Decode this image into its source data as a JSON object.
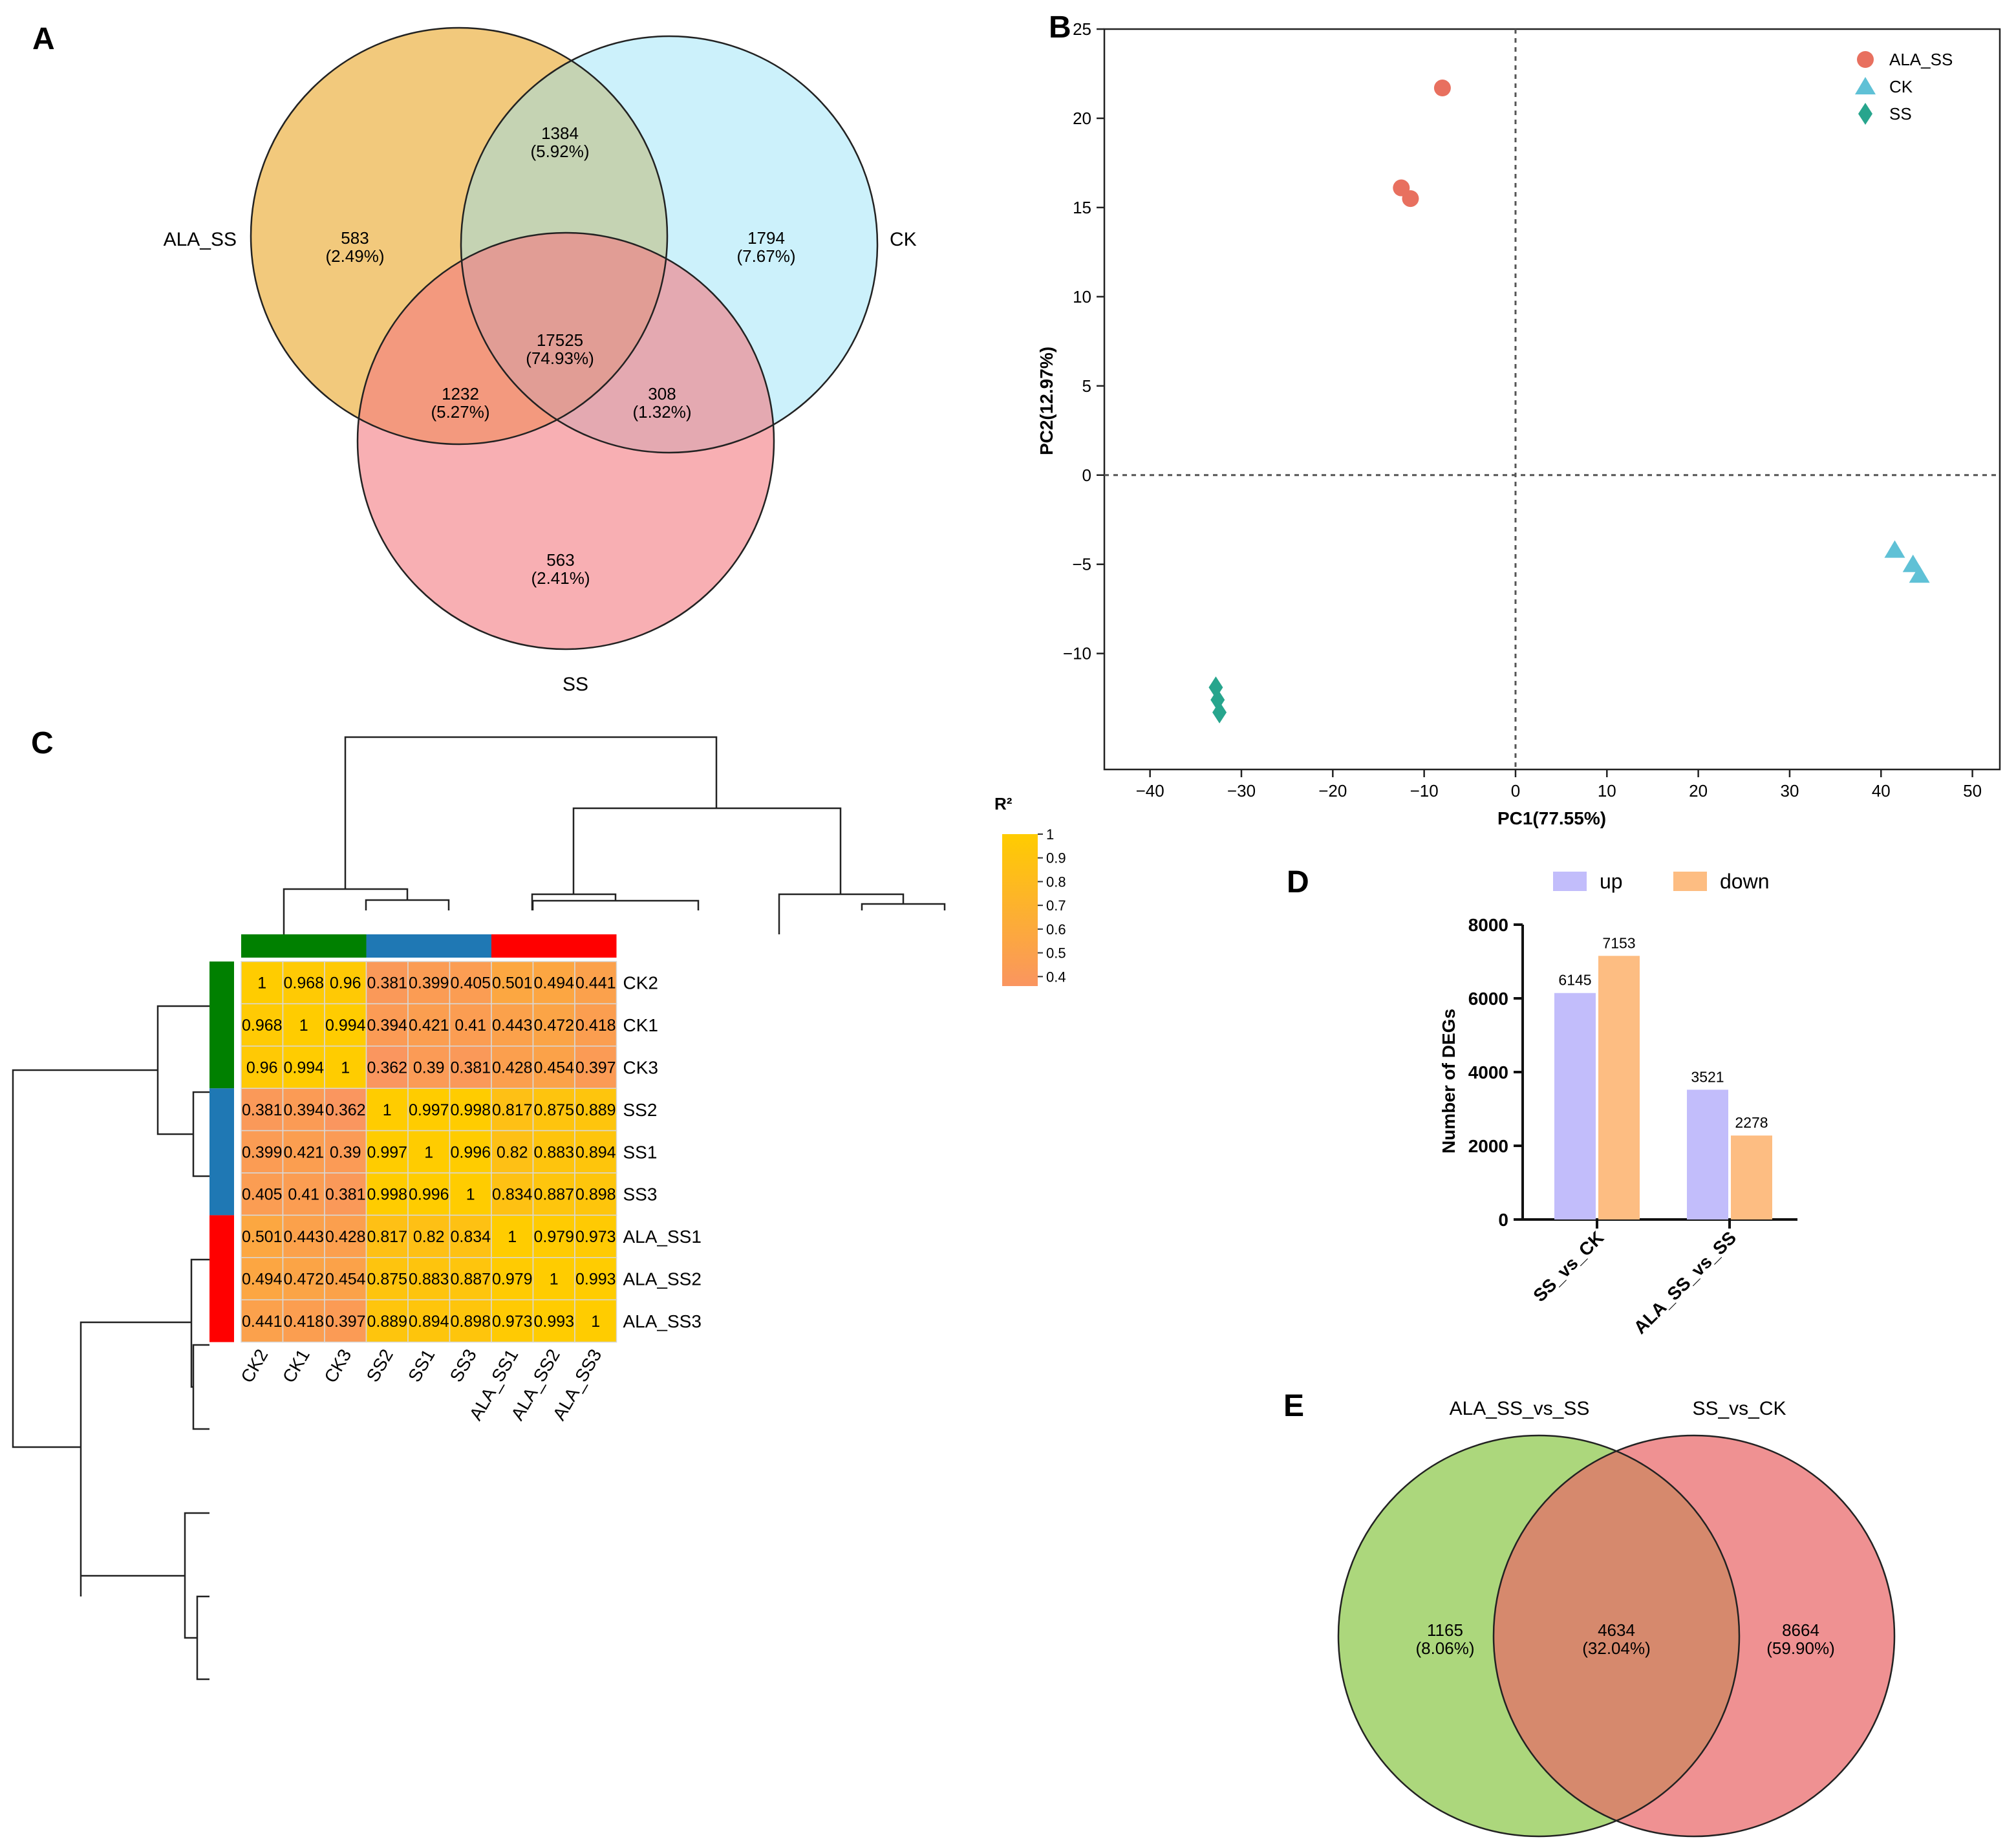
{
  "panels": {
    "a": "A",
    "b": "B",
    "c": "C",
    "d": "D",
    "e": "E"
  },
  "chart_data": [
    {
      "panel": "A",
      "type": "venn",
      "sets": [
        "ALA_SS",
        "CK",
        "SS"
      ],
      "colors": {
        "ALA_SS": "#f2c97c",
        "CK": "#8fe0f7",
        "SS": "#f47a80"
      },
      "regions": [
        {
          "id": "ala_only",
          "sets": [
            "ALA_SS"
          ],
          "count": "583",
          "pct": "(2.49%)"
        },
        {
          "id": "ck_only",
          "sets": [
            "CK"
          ],
          "count": "1794",
          "pct": "(7.67%)"
        },
        {
          "id": "ss_only",
          "sets": [
            "SS"
          ],
          "count": "563",
          "pct": "(2.41%)"
        },
        {
          "id": "ala_ck",
          "sets": [
            "ALA_SS",
            "CK"
          ],
          "count": "1384",
          "pct": "(5.92%)"
        },
        {
          "id": "ala_ss",
          "sets": [
            "ALA_SS",
            "SS"
          ],
          "count": "1232",
          "pct": "(5.27%)"
        },
        {
          "id": "ck_ss",
          "sets": [
            "CK",
            "SS"
          ],
          "count": "308",
          "pct": "(1.32%)"
        },
        {
          "id": "all",
          "sets": [
            "ALA_SS",
            "CK",
            "SS"
          ],
          "count": "17525",
          "pct": "(74.93%)"
        }
      ]
    },
    {
      "panel": "B",
      "type": "scatter",
      "xlabel": "PC1(77.55%)",
      "ylabel": "PC2(12.97%)",
      "xlim": [
        -45,
        53
      ],
      "ylim": [
        -16.5,
        25
      ],
      "xticks": [
        -40,
        -30,
        -20,
        -10,
        0,
        10,
        20,
        30,
        40,
        50
      ],
      "yticks": [
        -10,
        -5,
        0,
        5,
        10,
        15,
        20,
        25
      ],
      "reference_lines": {
        "x": 0,
        "y": 0
      },
      "legend": "top-right",
      "series": [
        {
          "name": "ALA_SS",
          "marker": "circle",
          "color": "#e8705f",
          "points": [
            [
              -8,
              21.7
            ],
            [
              -12.5,
              16.1
            ],
            [
              -11.5,
              15.5
            ]
          ]
        },
        {
          "name": "CK",
          "marker": "triangle",
          "color": "#5fc1d6",
          "points": [
            [
              41.5,
              -4.2
            ],
            [
              43.5,
              -5.0
            ],
            [
              44.2,
              -5.6
            ]
          ]
        },
        {
          "name": "SS",
          "marker": "diamond",
          "color": "#27a58d",
          "points": [
            [
              -32.8,
              -11.9
            ],
            [
              -32.6,
              -12.6
            ],
            [
              -32.4,
              -13.3
            ]
          ]
        }
      ]
    },
    {
      "panel": "C",
      "type": "heatmap",
      "legend_title": "R²",
      "legend_ticks": [
        "1",
        "0.9",
        "0.8",
        "0.7",
        "0.6",
        "0.5",
        "0.4"
      ],
      "legend_values": [
        1,
        0.9,
        0.8,
        0.7,
        0.6,
        0.5,
        0.4
      ],
      "color_scale": {
        "min": 0.36,
        "max": 1,
        "low": "#fa9560",
        "high": "#ffcc00"
      },
      "columns": [
        "CK2",
        "CK1",
        "CK3",
        "SS2",
        "SS1",
        "SS3",
        "ALA_SS1",
        "ALA_SS2",
        "ALA_SS3"
      ],
      "rows": [
        "CK2",
        "CK1",
        "CK3",
        "SS2",
        "SS1",
        "SS3",
        "ALA_SS1",
        "ALA_SS2",
        "ALA_SS3"
      ],
      "group_colors": {
        "CK": "#008000",
        "SS": "#1f78b4",
        "ALA_SS": "#ff0000"
      },
      "groups": [
        "CK",
        "CK",
        "CK",
        "SS",
        "SS",
        "SS",
        "ALA_SS",
        "ALA_SS",
        "ALA_SS"
      ],
      "values": [
        [
          "1",
          "0.968",
          "0.96",
          "0.381",
          "0.399",
          "0.405",
          "0.501",
          "0.494",
          "0.441"
        ],
        [
          "0.968",
          "1",
          "0.994",
          "0.394",
          "0.421",
          "0.41",
          "0.443",
          "0.472",
          "0.418"
        ],
        [
          "0.96",
          "0.994",
          "1",
          "0.362",
          "0.39",
          "0.381",
          "0.428",
          "0.454",
          "0.397"
        ],
        [
          "0.381",
          "0.394",
          "0.362",
          "1",
          "0.997",
          "0.998",
          "0.817",
          "0.875",
          "0.889"
        ],
        [
          "0.399",
          "0.421",
          "0.39",
          "0.997",
          "1",
          "0.996",
          "0.82",
          "0.883",
          "0.894"
        ],
        [
          "0.405",
          "0.41",
          "0.381",
          "0.998",
          "0.996",
          "1",
          "0.834",
          "0.887",
          "0.898"
        ],
        [
          "0.501",
          "0.443",
          "0.428",
          "0.817",
          "0.82",
          "0.834",
          "1",
          "0.979",
          "0.973"
        ],
        [
          "0.494",
          "0.472",
          "0.454",
          "0.875",
          "0.883",
          "0.887",
          "0.979",
          "1",
          "0.993"
        ],
        [
          "0.441",
          "0.418",
          "0.397",
          "0.889",
          "0.894",
          "0.898",
          "0.973",
          "0.993",
          "1"
        ]
      ]
    },
    {
      "panel": "D",
      "type": "bar",
      "ylabel": "Number of DEGs",
      "ylim": [
        0,
        8000
      ],
      "yticks": [
        0,
        2000,
        4000,
        6000,
        8000
      ],
      "categories": [
        "SS_vs_CK",
        "ALA_SS_vs_SS"
      ],
      "legend": "top",
      "series": [
        {
          "name": "up",
          "color": "#c2bdfb",
          "values": [
            6145,
            3521
          ]
        },
        {
          "name": "down",
          "color": "#fdbd82",
          "values": [
            7153,
            2278
          ]
        }
      ]
    },
    {
      "panel": "E",
      "type": "venn",
      "sets": [
        "ALA_SS_vs_SS",
        "SS_vs_CK"
      ],
      "colors": {
        "ALA_SS_vs_SS": "#acd77c",
        "SS_vs_CK": "#ef9192"
      },
      "regions": [
        {
          "id": "left_only",
          "sets": [
            "ALA_SS_vs_SS"
          ],
          "count": "1165",
          "pct": "(8.06%)"
        },
        {
          "id": "both",
          "sets": [
            "ALA_SS_vs_SS",
            "SS_vs_CK"
          ],
          "count": "4634",
          "pct": "(32.04%)"
        },
        {
          "id": "right_only",
          "sets": [
            "SS_vs_CK"
          ],
          "count": "8664",
          "pct": "(59.90%)"
        }
      ]
    }
  ]
}
